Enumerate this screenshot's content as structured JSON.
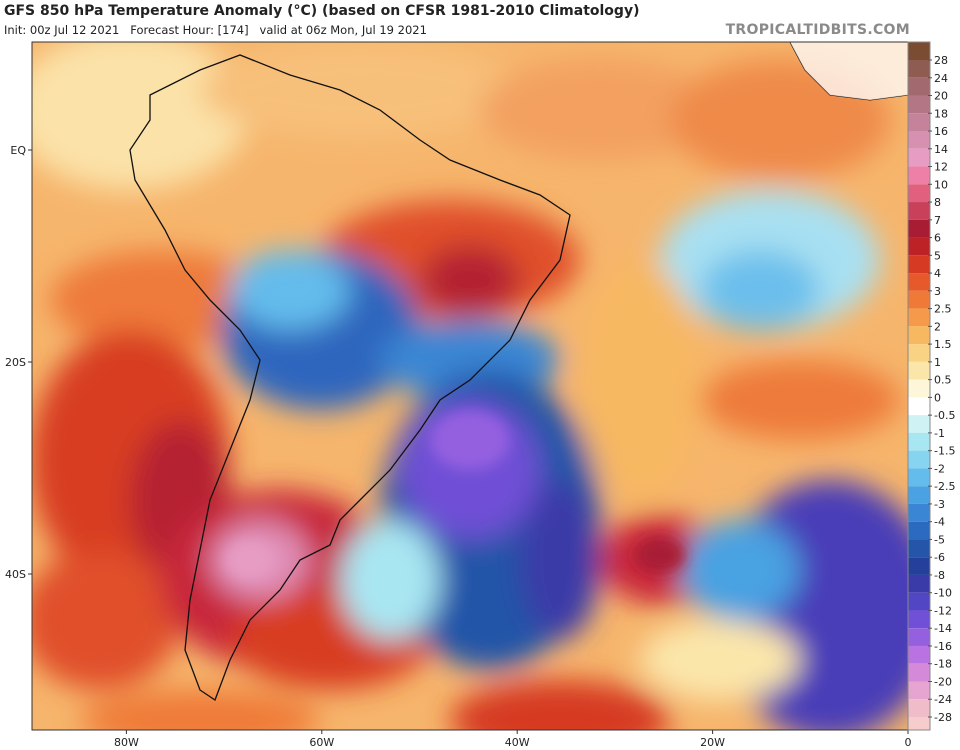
{
  "header": {
    "title": "GFS 850 hPa Temperature Anomaly (°C) (based on CFSR 1981-2010 Climatology)",
    "subtitle": "Init: 00z Jul 12 2021   Forecast Hour: [174]   valid at 06z Mon, Jul 19 2021",
    "source": "TROPICALTIDBITS.COM"
  },
  "map": {
    "lat_ticks": [
      {
        "value": 0,
        "label": "EQ"
      },
      {
        "value": -20,
        "label": "20S"
      },
      {
        "value": -40,
        "label": "40S"
      }
    ],
    "lon_ticks": [
      {
        "value": -80,
        "label": "80W"
      },
      {
        "value": -60,
        "label": "60W"
      },
      {
        "value": -40,
        "label": "40W"
      },
      {
        "value": -20,
        "label": "20W"
      },
      {
        "value": 0,
        "label": "0"
      }
    ]
  },
  "colorbar": {
    "levels": [
      28,
      24,
      20,
      18,
      16,
      14,
      12,
      10,
      8,
      7,
      6,
      5,
      4,
      3,
      2.5,
      2,
      1.5,
      1,
      0.5,
      0,
      -0.5,
      -1,
      -1.5,
      -2,
      -2.5,
      -3,
      -4,
      -5,
      -6,
      -8,
      -10,
      -12,
      -14,
      -16,
      -18,
      -20,
      -24,
      -28
    ],
    "colors": [
      "#7a4d33",
      "#8f5c52",
      "#a26a6e",
      "#b27684",
      "#c4839a",
      "#d690b0",
      "#e79cc4",
      "#ee80a8",
      "#e0607e",
      "#c8405a",
      "#a81c34",
      "#bd2226",
      "#d63a22",
      "#e6592a",
      "#ef7a38",
      "#f49a4a",
      "#f7b862",
      "#f9d284",
      "#fbe6aa",
      "#fdf6d8",
      "#ffffff",
      "#cff2f4",
      "#a8e6f2",
      "#86d4f0",
      "#64bcec",
      "#4aa2e2",
      "#3a86d4",
      "#2c6abf",
      "#2455a8",
      "#24409a",
      "#3a3aa8",
      "#5246c4",
      "#7050d6",
      "#9460e0",
      "#b872e2",
      "#d48ad8",
      "#e6a4d0",
      "#f0bcca",
      "#f6cccc"
    ]
  }
}
